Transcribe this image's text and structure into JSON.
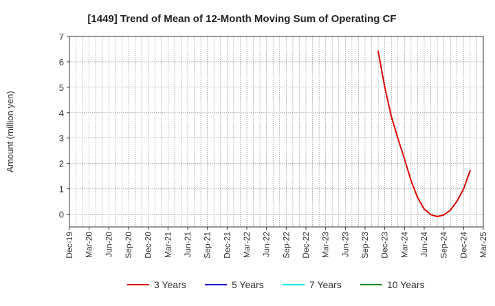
{
  "chart_data": {
    "type": "line",
    "title": "[1449]  Trend of Mean of 12-Month Moving Sum of Operating CF",
    "ylabel": "Amount (million yen)",
    "xlabel": "",
    "ylim": [
      -0.5,
      7
    ],
    "yticks": [
      0,
      1,
      2,
      3,
      4,
      5,
      6,
      7
    ],
    "x_start": "2019-12",
    "x_end": "2025-03",
    "xtick_labels": [
      "Dec-19",
      "Mar-20",
      "Jun-20",
      "Sep-20",
      "Dec-20",
      "Mar-21",
      "Jun-21",
      "Sep-21",
      "Dec-21",
      "Mar-22",
      "Jun-22",
      "Sep-22",
      "Dec-22",
      "Mar-23",
      "Jun-23",
      "Sep-23",
      "Dec-23",
      "Mar-24",
      "Jun-24",
      "Sep-24",
      "Dec-24",
      "Mar-25"
    ],
    "grid": true,
    "legend_position": "bottom",
    "series": [
      {
        "name": "3 Years",
        "color": "#dd0000",
        "points": [
          {
            "x": "2023-11",
            "y": 6.42
          },
          {
            "x": "2023-12",
            "y": 5.0
          },
          {
            "x": "2024-01",
            "y": 3.85
          },
          {
            "x": "2024-02",
            "y": 2.98
          },
          {
            "x": "2024-03",
            "y": 2.18
          },
          {
            "x": "2024-04",
            "y": 1.32
          },
          {
            "x": "2024-05",
            "y": 0.66
          },
          {
            "x": "2024-06",
            "y": 0.2
          },
          {
            "x": "2024-07",
            "y": -0.02
          },
          {
            "x": "2024-08",
            "y": -0.09
          },
          {
            "x": "2024-09",
            "y": -0.03
          },
          {
            "x": "2024-10",
            "y": 0.16
          },
          {
            "x": "2024-11",
            "y": 0.52
          },
          {
            "x": "2024-12",
            "y": 1.0
          },
          {
            "x": "2025-01",
            "y": 1.72
          }
        ]
      },
      {
        "name": "5 Years",
        "color": "#0000cc",
        "points": []
      },
      {
        "name": "7 Years",
        "color": "#00e5ee",
        "points": []
      },
      {
        "name": "10 Years",
        "color": "#228b22",
        "points": []
      }
    ]
  }
}
